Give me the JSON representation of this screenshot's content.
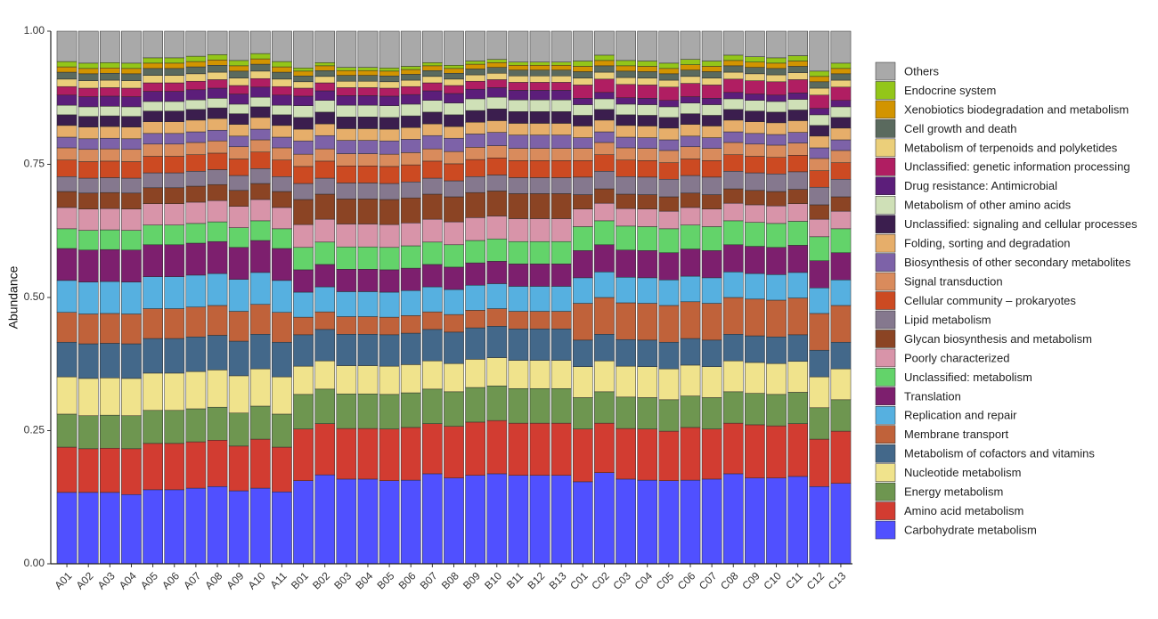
{
  "chart_data": {
    "type": "stacked_bar",
    "ylabel": "Abundance",
    "ylim": [
      0,
      1
    ],
    "yticks": [
      {
        "value": 0,
        "label": "0.00"
      },
      {
        "value": 0.25,
        "label": "0.25"
      },
      {
        "value": 0.5,
        "label": "0.50"
      },
      {
        "value": 0.75,
        "label": "0.75"
      },
      {
        "value": 1,
        "label": "1.00"
      }
    ],
    "categories": [
      "A01",
      "A02",
      "A03",
      "A04",
      "A05",
      "A06",
      "A07",
      "A08",
      "A09",
      "A10",
      "A11",
      "B01",
      "B02",
      "B03",
      "B04",
      "B05",
      "B06",
      "B07",
      "B08",
      "B09",
      "B10",
      "B11",
      "B12",
      "B13",
      "C01",
      "C02",
      "C03",
      "C04",
      "C05",
      "C06",
      "C07",
      "C08",
      "C09",
      "C10",
      "C11",
      "C12",
      "C13"
    ],
    "series": [
      {
        "name": "Carbohydrate metabolism",
        "color": "#5050ff",
        "values": [
          0.134,
          0.134,
          0.134,
          0.13,
          0.139,
          0.139,
          0.142,
          0.145,
          0.137,
          0.142,
          0.135,
          0.156,
          0.167,
          0.159,
          0.159,
          0.156,
          0.157,
          0.169,
          0.161,
          0.166,
          0.169,
          0.166,
          0.166,
          0.166,
          0.154,
          0.171,
          0.159,
          0.157,
          0.156,
          0.157,
          0.159,
          0.169,
          0.161,
          0.161,
          0.164,
          0.145,
          0.151
        ]
      },
      {
        "name": "Amino acid metabolism",
        "color": "#d23c31",
        "values": [
          0.085,
          0.082,
          0.083,
          0.086,
          0.087,
          0.087,
          0.087,
          0.087,
          0.084,
          0.092,
          0.084,
          0.097,
          0.096,
          0.095,
          0.095,
          0.097,
          0.099,
          0.094,
          0.097,
          0.1,
          0.1,
          0.098,
          0.098,
          0.098,
          0.099,
          0.093,
          0.095,
          0.096,
          0.093,
          0.099,
          0.094,
          0.095,
          0.1,
          0.098,
          0.099,
          0.089,
          0.098
        ]
      },
      {
        "name": "Energy metabolism",
        "color": "#6e9650",
        "values": [
          0.062,
          0.062,
          0.062,
          0.062,
          0.062,
          0.062,
          0.062,
          0.062,
          0.062,
          0.062,
          0.062,
          0.065,
          0.065,
          0.065,
          0.065,
          0.065,
          0.065,
          0.065,
          0.065,
          0.065,
          0.065,
          0.065,
          0.065,
          0.065,
          0.059,
          0.059,
          0.059,
          0.059,
          0.059,
          0.059,
          0.059,
          0.059,
          0.059,
          0.059,
          0.059,
          0.059,
          0.059
        ]
      },
      {
        "name": "Nucleotide metabolism",
        "color": "#f0e38c",
        "values": [
          0.07,
          0.07,
          0.07,
          0.07,
          0.07,
          0.07,
          0.07,
          0.07,
          0.07,
          0.07,
          0.07,
          0.053,
          0.053,
          0.053,
          0.053,
          0.053,
          0.053,
          0.053,
          0.053,
          0.053,
          0.053,
          0.053,
          0.053,
          0.053,
          0.058,
          0.058,
          0.058,
          0.058,
          0.058,
          0.058,
          0.058,
          0.058,
          0.058,
          0.058,
          0.058,
          0.058,
          0.058
        ]
      },
      {
        "name": "Metabolism of cofactors and vitamins",
        "color": "#43688a",
        "values": [
          0.065,
          0.065,
          0.065,
          0.065,
          0.065,
          0.065,
          0.065,
          0.065,
          0.065,
          0.065,
          0.065,
          0.059,
          0.059,
          0.059,
          0.059,
          0.059,
          0.059,
          0.059,
          0.059,
          0.059,
          0.059,
          0.059,
          0.059,
          0.059,
          0.05,
          0.05,
          0.05,
          0.05,
          0.05,
          0.05,
          0.05,
          0.05,
          0.05,
          0.05,
          0.05,
          0.05,
          0.05
        ]
      },
      {
        "name": "Membrane transport",
        "color": "#c0623a",
        "values": [
          0.056,
          0.056,
          0.056,
          0.056,
          0.056,
          0.056,
          0.056,
          0.056,
          0.056,
          0.056,
          0.056,
          0.033,
          0.033,
          0.033,
          0.033,
          0.033,
          0.033,
          0.033,
          0.033,
          0.033,
          0.033,
          0.033,
          0.033,
          0.033,
          0.069,
          0.069,
          0.069,
          0.069,
          0.069,
          0.069,
          0.069,
          0.069,
          0.069,
          0.069,
          0.069,
          0.069,
          0.069
        ]
      },
      {
        "name": "Replication and repair",
        "color": "#56b0e0",
        "values": [
          0.06,
          0.06,
          0.06,
          0.06,
          0.06,
          0.06,
          0.06,
          0.06,
          0.06,
          0.06,
          0.06,
          0.047,
          0.047,
          0.047,
          0.047,
          0.047,
          0.047,
          0.047,
          0.047,
          0.047,
          0.047,
          0.047,
          0.047,
          0.047,
          0.048,
          0.048,
          0.048,
          0.048,
          0.048,
          0.048,
          0.048,
          0.048,
          0.048,
          0.048,
          0.048,
          0.048,
          0.048
        ]
      },
      {
        "name": "Translation",
        "color": "#7d1f6e",
        "values": [
          0.06,
          0.06,
          0.06,
          0.06,
          0.06,
          0.06,
          0.06,
          0.06,
          0.06,
          0.06,
          0.06,
          0.042,
          0.042,
          0.042,
          0.042,
          0.042,
          0.042,
          0.042,
          0.042,
          0.042,
          0.042,
          0.042,
          0.042,
          0.042,
          0.051,
          0.051,
          0.051,
          0.051,
          0.051,
          0.051,
          0.051,
          0.051,
          0.051,
          0.051,
          0.051,
          0.051,
          0.051
        ]
      },
      {
        "name": "Unclassified: metabolism",
        "color": "#63d36a",
        "values": [
          0.037,
          0.037,
          0.037,
          0.037,
          0.037,
          0.037,
          0.037,
          0.037,
          0.037,
          0.037,
          0.037,
          0.042,
          0.042,
          0.042,
          0.042,
          0.042,
          0.042,
          0.042,
          0.042,
          0.042,
          0.042,
          0.042,
          0.042,
          0.042,
          0.045,
          0.045,
          0.045,
          0.045,
          0.045,
          0.045,
          0.045,
          0.045,
          0.045,
          0.045,
          0.045,
          0.045,
          0.045
        ]
      },
      {
        "name": "Poorly characterized",
        "color": "#d894a9",
        "values": [
          0.04,
          0.04,
          0.04,
          0.04,
          0.04,
          0.04,
          0.04,
          0.04,
          0.04,
          0.04,
          0.04,
          0.043,
          0.043,
          0.043,
          0.043,
          0.043,
          0.043,
          0.043,
          0.043,
          0.043,
          0.043,
          0.043,
          0.043,
          0.043,
          0.033,
          0.033,
          0.033,
          0.033,
          0.033,
          0.033,
          0.033,
          0.033,
          0.033,
          0.033,
          0.033,
          0.033,
          0.033
        ]
      },
      {
        "name": "Glycan biosynthesis and metabolism",
        "color": "#8b4424",
        "values": [
          0.03,
          0.03,
          0.03,
          0.03,
          0.03,
          0.03,
          0.03,
          0.03,
          0.03,
          0.03,
          0.03,
          0.047,
          0.047,
          0.047,
          0.047,
          0.047,
          0.047,
          0.047,
          0.047,
          0.047,
          0.047,
          0.047,
          0.047,
          0.047,
          0.027,
          0.027,
          0.027,
          0.027,
          0.027,
          0.027,
          0.027,
          0.027,
          0.027,
          0.027,
          0.027,
          0.027,
          0.027
        ]
      },
      {
        "name": "Lipid metabolism",
        "color": "#85788e",
        "values": [
          0.028,
          0.028,
          0.028,
          0.028,
          0.028,
          0.028,
          0.028,
          0.028,
          0.028,
          0.028,
          0.028,
          0.03,
          0.03,
          0.03,
          0.03,
          0.03,
          0.03,
          0.03,
          0.03,
          0.03,
          0.03,
          0.03,
          0.03,
          0.03,
          0.033,
          0.033,
          0.033,
          0.033,
          0.033,
          0.033,
          0.033,
          0.033,
          0.033,
          0.033,
          0.033,
          0.033,
          0.033
        ]
      },
      {
        "name": "Cellular community – prokaryotes",
        "color": "#cc4a22",
        "values": [
          0.031,
          0.031,
          0.031,
          0.031,
          0.031,
          0.031,
          0.031,
          0.031,
          0.031,
          0.031,
          0.031,
          0.032,
          0.032,
          0.032,
          0.032,
          0.032,
          0.032,
          0.032,
          0.032,
          0.032,
          0.032,
          0.032,
          0.032,
          0.032,
          0.031,
          0.031,
          0.031,
          0.031,
          0.031,
          0.031,
          0.031,
          0.031,
          0.031,
          0.031,
          0.031,
          0.031,
          0.031
        ]
      },
      {
        "name": "Signal transduction",
        "color": "#d98b5c",
        "values": [
          0.023,
          0.023,
          0.023,
          0.023,
          0.023,
          0.023,
          0.023,
          0.023,
          0.023,
          0.023,
          0.023,
          0.023,
          0.023,
          0.023,
          0.023,
          0.023,
          0.023,
          0.023,
          0.023,
          0.023,
          0.023,
          0.023,
          0.023,
          0.023,
          0.023,
          0.023,
          0.023,
          0.023,
          0.023,
          0.023,
          0.023,
          0.023,
          0.023,
          0.023,
          0.023,
          0.023,
          0.023
        ]
      },
      {
        "name": "Biosynthesis of other secondary metabolites",
        "color": "#7d62a8",
        "values": [
          0.02,
          0.02,
          0.02,
          0.02,
          0.02,
          0.02,
          0.02,
          0.02,
          0.02,
          0.02,
          0.02,
          0.025,
          0.025,
          0.025,
          0.025,
          0.025,
          0.025,
          0.025,
          0.025,
          0.025,
          0.025,
          0.025,
          0.025,
          0.025,
          0.02,
          0.02,
          0.02,
          0.02,
          0.02,
          0.02,
          0.02,
          0.02,
          0.02,
          0.02,
          0.02,
          0.02,
          0.02
        ]
      },
      {
        "name": "Folding, sorting and degradation",
        "color": "#e6ae6a",
        "values": [
          0.022,
          0.022,
          0.022,
          0.022,
          0.022,
          0.022,
          0.022,
          0.022,
          0.022,
          0.022,
          0.022,
          0.022,
          0.022,
          0.022,
          0.022,
          0.022,
          0.022,
          0.022,
          0.022,
          0.022,
          0.022,
          0.022,
          0.022,
          0.022,
          0.022,
          0.022,
          0.022,
          0.022,
          0.022,
          0.022,
          0.022,
          0.022,
          0.022,
          0.022,
          0.022,
          0.022,
          0.022
        ]
      },
      {
        "name": "Unclassified: signaling and cellular processes",
        "color": "#3b1e4e",
        "values": [
          0.02,
          0.02,
          0.02,
          0.02,
          0.02,
          0.02,
          0.02,
          0.02,
          0.02,
          0.02,
          0.02,
          0.022,
          0.022,
          0.022,
          0.022,
          0.022,
          0.022,
          0.022,
          0.022,
          0.022,
          0.022,
          0.022,
          0.022,
          0.022,
          0.02,
          0.02,
          0.02,
          0.02,
          0.02,
          0.02,
          0.02,
          0.02,
          0.02,
          0.02,
          0.02,
          0.02,
          0.02
        ]
      },
      {
        "name": "Metabolism of other amino acids",
        "color": "#cfe0b7",
        "values": [
          0.018,
          0.018,
          0.018,
          0.018,
          0.018,
          0.018,
          0.018,
          0.018,
          0.018,
          0.018,
          0.018,
          0.022,
          0.022,
          0.022,
          0.022,
          0.022,
          0.022,
          0.022,
          0.022,
          0.022,
          0.022,
          0.022,
          0.022,
          0.022,
          0.02,
          0.02,
          0.02,
          0.02,
          0.02,
          0.02,
          0.02,
          0.02,
          0.02,
          0.02,
          0.02,
          0.02,
          0.02
        ]
      },
      {
        "name": "Drug resistance: Antimicrobial",
        "color": "#5c1e7a",
        "values": [
          0.019,
          0.019,
          0.019,
          0.019,
          0.019,
          0.019,
          0.019,
          0.019,
          0.019,
          0.019,
          0.019,
          0.018,
          0.018,
          0.018,
          0.018,
          0.018,
          0.018,
          0.018,
          0.018,
          0.018,
          0.018,
          0.018,
          0.018,
          0.018,
          0.012,
          0.012,
          0.012,
          0.012,
          0.012,
          0.012,
          0.012,
          0.012,
          0.012,
          0.012,
          0.012,
          0.012,
          0.012
        ]
      },
      {
        "name": "Unclassified: genetic information processing",
        "color": "#b01e62",
        "values": [
          0.016,
          0.016,
          0.016,
          0.016,
          0.016,
          0.016,
          0.016,
          0.016,
          0.016,
          0.016,
          0.016,
          0.015,
          0.015,
          0.015,
          0.015,
          0.015,
          0.015,
          0.015,
          0.015,
          0.015,
          0.015,
          0.015,
          0.015,
          0.015,
          0.025,
          0.025,
          0.025,
          0.025,
          0.025,
          0.025,
          0.025,
          0.025,
          0.025,
          0.025,
          0.025,
          0.025,
          0.025
        ]
      },
      {
        "name": "Metabolism of terpenoids and polyketides",
        "color": "#ebcf7a",
        "values": [
          0.014,
          0.014,
          0.014,
          0.014,
          0.014,
          0.014,
          0.014,
          0.014,
          0.014,
          0.014,
          0.014,
          0.012,
          0.012,
          0.012,
          0.012,
          0.012,
          0.012,
          0.012,
          0.012,
          0.012,
          0.012,
          0.012,
          0.012,
          0.012,
          0.013,
          0.013,
          0.013,
          0.013,
          0.013,
          0.013,
          0.013,
          0.013,
          0.013,
          0.013,
          0.013,
          0.013,
          0.013
        ]
      },
      {
        "name": "Cell growth and death",
        "color": "#5a6a5e",
        "values": [
          0.013,
          0.013,
          0.013,
          0.013,
          0.013,
          0.013,
          0.013,
          0.013,
          0.013,
          0.013,
          0.013,
          0.011,
          0.011,
          0.011,
          0.011,
          0.011,
          0.011,
          0.011,
          0.011,
          0.011,
          0.011,
          0.011,
          0.011,
          0.011,
          0.012,
          0.012,
          0.012,
          0.012,
          0.012,
          0.012,
          0.012,
          0.012,
          0.012,
          0.012,
          0.012,
          0.012,
          0.012
        ]
      },
      {
        "name": "Xenobiotics biodegradation and metabolism",
        "color": "#d29400",
        "values": [
          0.01,
          0.01,
          0.01,
          0.01,
          0.01,
          0.01,
          0.01,
          0.01,
          0.01,
          0.01,
          0.01,
          0.009,
          0.009,
          0.009,
          0.009,
          0.009,
          0.009,
          0.009,
          0.009,
          0.009,
          0.009,
          0.009,
          0.009,
          0.009,
          0.01,
          0.01,
          0.01,
          0.01,
          0.01,
          0.01,
          0.01,
          0.01,
          0.01,
          0.01,
          0.01,
          0.01,
          0.01
        ]
      },
      {
        "name": "Endocrine system",
        "color": "#93c619",
        "values": [
          0.01,
          0.01,
          0.01,
          0.01,
          0.01,
          0.01,
          0.01,
          0.01,
          0.01,
          0.01,
          0.01,
          0.006,
          0.006,
          0.006,
          0.006,
          0.006,
          0.006,
          0.006,
          0.006,
          0.006,
          0.006,
          0.006,
          0.006,
          0.006,
          0.01,
          0.01,
          0.01,
          0.01,
          0.01,
          0.01,
          0.01,
          0.01,
          0.01,
          0.01,
          0.01,
          0.01,
          0.01
        ]
      },
      {
        "name": "Others",
        "color": "#a9a9a9",
        "values": [
          0.057,
          0.06,
          0.059,
          0.06,
          0.05,
          0.05,
          0.047,
          0.044,
          0.055,
          0.042,
          0.057,
          0.069,
          0.059,
          0.068,
          0.068,
          0.069,
          0.066,
          0.059,
          0.064,
          0.056,
          0.053,
          0.058,
          0.058,
          0.058,
          0.056,
          0.045,
          0.055,
          0.056,
          0.06,
          0.053,
          0.056,
          0.045,
          0.048,
          0.05,
          0.046,
          0.075,
          0.06
        ]
      }
    ]
  }
}
